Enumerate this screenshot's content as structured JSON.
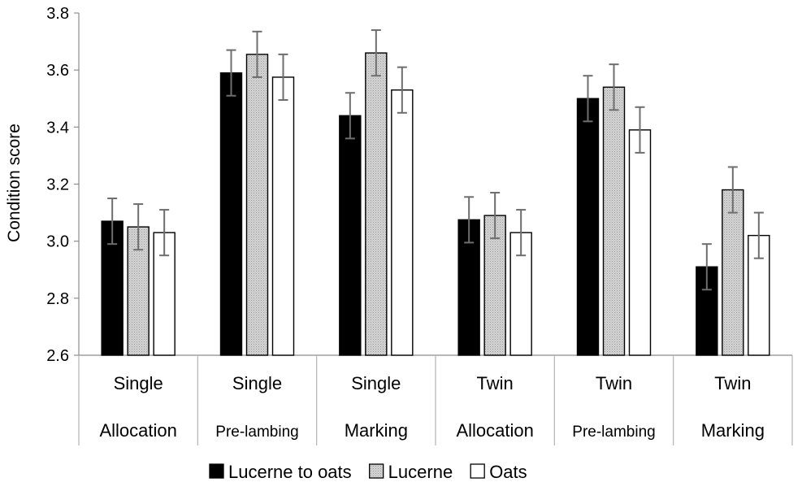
{
  "chart_data": {
    "type": "bar",
    "ylabel": "Condition score",
    "ylim": [
      2.6,
      3.8
    ],
    "yticks": [
      "2.6",
      "2.8",
      "3.0",
      "3.2",
      "3.4",
      "3.6",
      "3.8"
    ],
    "ytick_values": [
      2.6,
      2.8,
      3.0,
      3.2,
      3.4,
      3.6,
      3.8
    ],
    "categories": [
      {
        "group": "Single",
        "stage": "Allocation"
      },
      {
        "group": "Single",
        "stage": "Pre-lambing"
      },
      {
        "group": "Single",
        "stage": "Marking"
      },
      {
        "group": "Twin",
        "stage": "Allocation"
      },
      {
        "group": "Twin",
        "stage": "Pre-lambing"
      },
      {
        "group": "Twin",
        "stage": "Marking"
      }
    ],
    "series": [
      {
        "name": "Lucerne to oats",
        "color": "#000000",
        "values": [
          3.07,
          3.59,
          3.44,
          3.075,
          3.5,
          2.91
        ],
        "errors": [
          0.08,
          0.08,
          0.08,
          0.08,
          0.08,
          0.08
        ]
      },
      {
        "name": "Lucerne",
        "color": "#c8c8c8",
        "values": [
          3.05,
          3.655,
          3.66,
          3.09,
          3.54,
          3.18
        ],
        "errors": [
          0.08,
          0.08,
          0.08,
          0.08,
          0.08,
          0.08
        ]
      },
      {
        "name": "Oats",
        "color": "#ffffff",
        "values": [
          3.03,
          3.575,
          3.53,
          3.03,
          3.39,
          3.02
        ],
        "errors": [
          0.08,
          0.08,
          0.08,
          0.08,
          0.08,
          0.08
        ]
      }
    ],
    "grid": false,
    "legend_position": "bottom-center"
  }
}
